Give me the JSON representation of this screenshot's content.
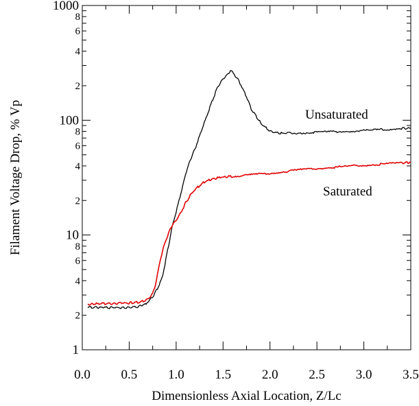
{
  "chart_data": {
    "type": "line",
    "title": "",
    "xlabel": "Dimensionless Axial Location, Z/Lc",
    "ylabel": "Filament Voltage Drop, % Vp",
    "xlim": [
      0.0,
      3.5
    ],
    "ylim": [
      1,
      1000
    ],
    "yscale": "log",
    "grid": false,
    "legend": "none",
    "x_ticks": [
      "0.0",
      "0.5",
      "1.0",
      "1.5",
      "2.0",
      "2.5",
      "3.0",
      "3.5"
    ],
    "y_ticks": [
      "1",
      "10",
      "100",
      "1000"
    ],
    "y_minor_labels": [
      "2",
      "4",
      "6",
      "8"
    ],
    "series": [
      {
        "name": "Unsaturated",
        "color": "#000000",
        "x": [
          0.06,
          0.1,
          0.2,
          0.3,
          0.4,
          0.5,
          0.6,
          0.65,
          0.7,
          0.75,
          0.8,
          0.85,
          0.88,
          0.9,
          0.93,
          0.96,
          1.0,
          1.05,
          1.1,
          1.15,
          1.2,
          1.3,
          1.4,
          1.45,
          1.5,
          1.55,
          1.58,
          1.62,
          1.66,
          1.7,
          1.75,
          1.8,
          1.9,
          2.0,
          2.1,
          2.2,
          2.4,
          2.6,
          2.8,
          3.0,
          3.2,
          3.4,
          3.5
        ],
        "y": [
          2.35,
          2.35,
          2.33,
          2.33,
          2.33,
          2.33,
          2.38,
          2.45,
          2.6,
          2.9,
          3.4,
          4.2,
          5.5,
          6.7,
          9.0,
          12.0,
          16.0,
          23.0,
          34.0,
          45.0,
          56.0,
          95.0,
          160.0,
          200.0,
          230.0,
          250.0,
          275.0,
          250.0,
          225.0,
          195.0,
          160.0,
          125.0,
          95.0,
          80.0,
          77.0,
          77.0,
          78.0,
          79.0,
          80.0,
          81.0,
          83.0,
          85.0,
          85.0
        ]
      },
      {
        "name": "Saturated",
        "color": "#e00000",
        "x": [
          0.06,
          0.1,
          0.2,
          0.3,
          0.4,
          0.5,
          0.6,
          0.65,
          0.7,
          0.75,
          0.78,
          0.8,
          0.83,
          0.86,
          0.9,
          0.94,
          0.97,
          1.0,
          1.05,
          1.1,
          1.15,
          1.2,
          1.3,
          1.4,
          1.5,
          1.6,
          1.8,
          2.0,
          2.2,
          2.4,
          2.6,
          2.8,
          3.0,
          3.2,
          3.4,
          3.5
        ],
        "y": [
          2.5,
          2.5,
          2.52,
          2.53,
          2.55,
          2.56,
          2.6,
          2.65,
          2.75,
          3.1,
          3.7,
          4.5,
          6.0,
          7.5,
          9.5,
          11.5,
          12.5,
          13.5,
          15.5,
          19.0,
          22.0,
          25.0,
          29.0,
          31.0,
          32.0,
          32.5,
          33.5,
          34.5,
          36.0,
          37.5,
          38.5,
          39.5,
          40.5,
          41.5,
          42.5,
          43.0
        ]
      }
    ]
  }
}
